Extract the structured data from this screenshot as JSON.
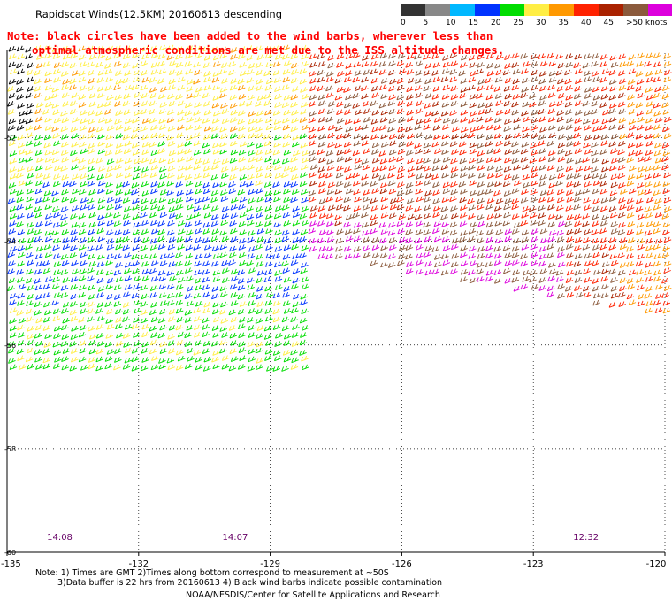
{
  "header": {
    "title": "Rapidscat Winds(12.5KM) 20160613 descending",
    "note_line1": "Note: black circles have been added to the wind barbs, wherever less than",
    "note_line2": "optimal atmospheric conditions are met due to the ISS altitude changes."
  },
  "legend": {
    "labels": [
      "0",
      "5",
      "10",
      "15",
      "20",
      "25",
      "30",
      "35",
      "40",
      "45",
      ">50 knots"
    ],
    "colors": [
      "#333333",
      "#888888",
      "#00b8ff",
      "#0033ff",
      "#00dd00",
      "#ffee44",
      "#ff9900",
      "#ff2200",
      "#aa2200",
      "#8b5a3c",
      "#dd00dd",
      "#330077"
    ]
  },
  "map": {
    "lon_ticks": [
      -135,
      -132,
      -129,
      -126,
      -123,
      -120
    ],
    "lon_labels": [
      "-135",
      "-132",
      "-129",
      "-126",
      "-123",
      "-120"
    ],
    "lat_ticks": [
      -52,
      -54,
      -56,
      -58,
      -60
    ],
    "lat_labels": [
      "-52",
      "-54",
      "-56",
      "-58",
      "-60"
    ],
    "lon_range": [
      -135,
      -120
    ],
    "lat_range": [
      -50.3,
      -60
    ],
    "pass_times": [
      {
        "label": "14:08",
        "lon": -133.8
      },
      {
        "label": "14:07",
        "lon": -129.8
      },
      {
        "label": "12:32",
        "lon": -121.8
      }
    ]
  },
  "footer": {
    "line1": "Note: 1) Times are GMT 2)Times along bottom correspond to measurement at ~50S",
    "line2": "3)Data buffer is 22 hrs from 20160613 4) Black wind barbs indicate possible contamination",
    "line3": "NOAA/NESDIS/Center for Satellite Applications and Research"
  }
}
